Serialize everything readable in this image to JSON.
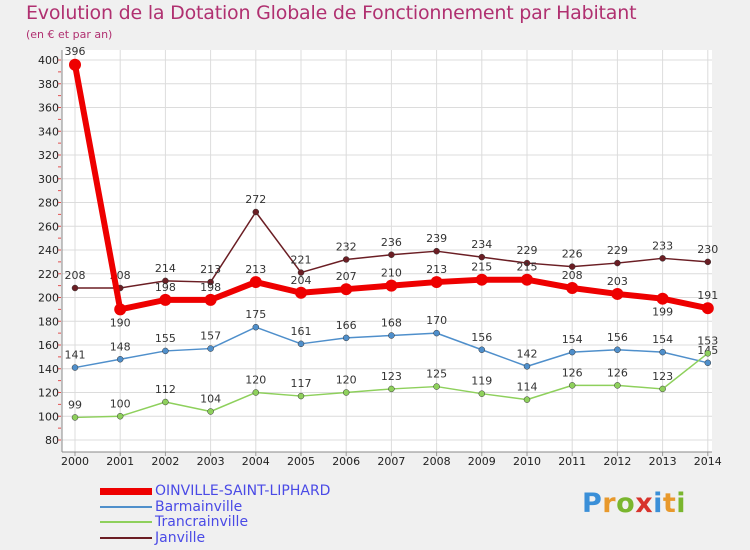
{
  "chart_data": {
    "type": "line",
    "title": "Evolution de la Dotation Globale de Fonctionnement par Habitant",
    "subtitle": "(en € et par an)",
    "categories": [
      "2000",
      "2001",
      "2002",
      "2003",
      "2004",
      "2005",
      "2006",
      "2007",
      "2008",
      "2009",
      "2010",
      "2011",
      "2012",
      "2013",
      "2014"
    ],
    "ylim": [
      80,
      400
    ],
    "yticks": [
      80,
      100,
      120,
      140,
      160,
      180,
      200,
      220,
      240,
      260,
      280,
      300,
      320,
      340,
      360,
      380,
      400
    ],
    "series": [
      {
        "name": "Janville",
        "color": "#6b1e24",
        "values": [
          208,
          208,
          214,
          213,
          272,
          221,
          232,
          236,
          239,
          234,
          229,
          226,
          229,
          233,
          230
        ],
        "labels": [
          "208",
          "208",
          "214",
          "213",
          "272",
          "221",
          "232",
          "236",
          "239",
          "234",
          "229",
          "226",
          "229",
          "233",
          "230"
        ]
      },
      {
        "name": "Barmainville",
        "color": "#4f8fcb",
        "values": [
          141,
          148,
          155,
          157,
          175,
          161,
          166,
          168,
          170,
          156,
          142,
          154,
          156,
          154,
          145
        ],
        "labels": [
          "141",
          "148",
          "155",
          "157",
          "175",
          "161",
          "166",
          "168",
          "170",
          "156",
          "142",
          "154",
          "156",
          "154",
          "145"
        ]
      },
      {
        "name": "Trancrainville",
        "color": "#8ed05c",
        "values": [
          99,
          100,
          112,
          104,
          120,
          117,
          120,
          123,
          125,
          119,
          114,
          126,
          126,
          123,
          153
        ],
        "labels": [
          "99",
          "100",
          "112",
          "104",
          "120",
          "117",
          "120",
          "123",
          "125",
          "119",
          "114",
          "126",
          "126",
          "123",
          "153"
        ]
      },
      {
        "name": "OINVILLE-SAINT-LIPHARD",
        "color": "#ee0000",
        "values": [
          396,
          190,
          198,
          198,
          213,
          204,
          207,
          210,
          213,
          215,
          215,
          208,
          203,
          199,
          191
        ],
        "labels": [
          "396",
          "190",
          "198",
          "198",
          "213",
          "204",
          "207",
          "210",
          "213",
          "215",
          "215",
          "208",
          "203",
          "199",
          "191"
        ]
      }
    ]
  },
  "legend": {
    "items": [
      {
        "label": "OINVILLE-SAINT-LIPHARD",
        "color": "#ee0000"
      },
      {
        "label": "Barmainville",
        "color": "#4f8fcb"
      },
      {
        "label": "Trancrainville",
        "color": "#8ed05c"
      },
      {
        "label": "Janville",
        "color": "#6b1e24"
      }
    ]
  },
  "logo": {
    "text": "Proxiti"
  }
}
